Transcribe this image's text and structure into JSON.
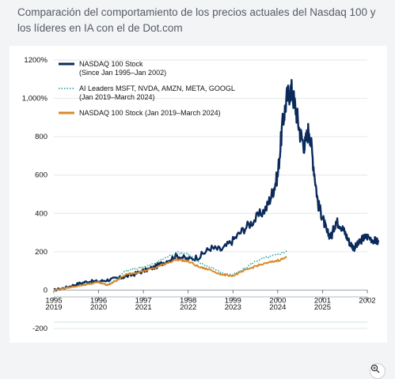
{
  "header": {
    "title": "Comparación del comportamiento de los precios actuales del Nasdaq 100 y los líderes en IA con el de Dot.com"
  },
  "icons": {
    "zoom": "zoom-in-icon"
  },
  "colors": {
    "navy": "#0b2a5b",
    "orange": "#d9892b",
    "teal": "#3aa5a5",
    "gridline": "#e3e6ea"
  },
  "chart_data": {
    "type": "line",
    "title": "",
    "ylim": [
      -200,
      1200
    ],
    "y_ticks": [
      {
        "value": 1200,
        "label": "1200%"
      },
      {
        "value": 1000,
        "label": "1,000%"
      },
      {
        "value": 800,
        "label": "800"
      },
      {
        "value": 600,
        "label": "600"
      },
      {
        "value": 400,
        "label": "400"
      },
      {
        "value": 200,
        "label": "200"
      },
      {
        "value": 0,
        "label": "0"
      },
      {
        "value": -200,
        "label": "-200"
      }
    ],
    "x_axis_top": {
      "label": "",
      "ticks": [
        "1995",
        "1996",
        "1997",
        "1998",
        "1999",
        "2000",
        "2001",
        "2002"
      ],
      "range": [
        1995,
        2002
      ]
    },
    "x_axis_bottom": {
      "label": "",
      "ticks": [
        "2019",
        "2020",
        "2021",
        "2022",
        "2023",
        "2024",
        "2025",
        "2026"
      ],
      "range": [
        2019,
        2026
      ]
    },
    "legend_position": "top-left",
    "series": [
      {
        "name": "NASDAQ 100 Stock\n(Since Jan 1995–Jan 2002)",
        "legend_lines": [
          "NASDAQ 100 Stock",
          "(Since Jan 1995–Jan 2002)"
        ],
        "axis": "top",
        "style": "solid",
        "color": "#0b2a5b",
        "x": [
          1995.0,
          1995.25,
          1995.5,
          1995.75,
          1996.0,
          1996.25,
          1996.5,
          1996.75,
          1997.0,
          1997.25,
          1997.5,
          1997.75,
          1998.0,
          1998.25,
          1998.5,
          1998.75,
          1999.0,
          1999.25,
          1999.5,
          1999.75,
          1999.9,
          2000.0,
          2000.1,
          2000.2,
          2000.3,
          2000.4,
          2000.5,
          2000.6,
          2000.7,
          2000.8,
          2000.9,
          2001.0,
          2001.1,
          2001.2,
          2001.3,
          2001.4,
          2001.5,
          2001.6,
          2001.7,
          2001.8,
          2001.9,
          2002.0,
          2002.15,
          2002.25
        ],
        "y": [
          0,
          12,
          30,
          45,
          45,
          55,
          65,
          80,
          100,
          120,
          150,
          180,
          160,
          175,
          220,
          210,
          260,
          320,
          370,
          430,
          520,
          600,
          850,
          1000,
          1050,
          950,
          820,
          750,
          850,
          650,
          450,
          380,
          300,
          280,
          360,
          340,
          300,
          250,
          220,
          240,
          270,
          280,
          260,
          250
        ]
      },
      {
        "name": "AI Leaders MSFT, NVDA, AMZN, META, GOOGL\n(Jan 2019–March 2024)",
        "legend_lines": [
          "AI Leaders MSFT, NVDA, AMZN, META, GOOGL",
          "(Jan 2019–March 2024)"
        ],
        "axis": "bottom",
        "style": "dotted",
        "color": "#3aa5a5",
        "x": [
          2019.0,
          2019.25,
          2019.5,
          2019.75,
          2020.0,
          2020.2,
          2020.4,
          2020.6,
          2020.8,
          2021.0,
          2021.25,
          2021.5,
          2021.75,
          2022.0,
          2022.25,
          2022.5,
          2022.75,
          2023.0,
          2023.25,
          2023.5,
          2023.75,
          2024.0,
          2024.2
        ],
        "y": [
          0,
          10,
          20,
          35,
          45,
          30,
          60,
          100,
          110,
          120,
          140,
          170,
          195,
          190,
          140,
          120,
          90,
          80,
          110,
          150,
          170,
          185,
          205
        ]
      },
      {
        "name": "NASDAQ 100 Stock (Jan 2019–March 2024)",
        "legend_lines": [
          "NASDAQ 100 Stock (Jan 2019–March 2024)"
        ],
        "axis": "bottom",
        "style": "solid",
        "color": "#d9892b",
        "x": [
          2019.0,
          2019.25,
          2019.5,
          2019.75,
          2020.0,
          2020.2,
          2020.4,
          2020.6,
          2020.8,
          2021.0,
          2021.25,
          2021.5,
          2021.75,
          2022.0,
          2022.25,
          2022.5,
          2022.75,
          2023.0,
          2023.25,
          2023.5,
          2023.75,
          2024.0,
          2024.2
        ],
        "y": [
          0,
          10,
          20,
          30,
          40,
          25,
          50,
          80,
          90,
          100,
          115,
          140,
          160,
          150,
          120,
          105,
          80,
          75,
          100,
          125,
          140,
          155,
          170
        ]
      }
    ]
  }
}
